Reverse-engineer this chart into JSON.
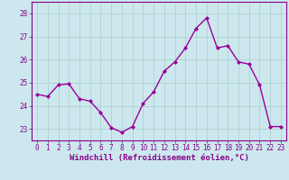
{
  "x": [
    0,
    1,
    2,
    3,
    4,
    5,
    6,
    7,
    8,
    9,
    10,
    11,
    12,
    13,
    14,
    15,
    16,
    17,
    18,
    19,
    20,
    21,
    22,
    23
  ],
  "y": [
    24.5,
    24.4,
    24.9,
    24.95,
    24.3,
    24.2,
    23.7,
    23.05,
    22.85,
    23.1,
    24.1,
    24.6,
    25.5,
    25.9,
    26.5,
    27.35,
    27.8,
    26.5,
    26.6,
    25.9,
    25.8,
    24.9,
    23.1,
    23.1
  ],
  "line_color": "#990099",
  "marker": "D",
  "marker_size": 2,
  "bg_color": "#cce8ee",
  "grid_color": "#aacccc",
  "xlabel": "Windchill (Refroidissement éolien,°C)",
  "xlim": [
    -0.5,
    23.5
  ],
  "ylim": [
    22.5,
    28.5
  ],
  "yticks": [
    23,
    24,
    25,
    26,
    27,
    28
  ],
  "xticks": [
    0,
    1,
    2,
    3,
    4,
    5,
    6,
    7,
    8,
    9,
    10,
    11,
    12,
    13,
    14,
    15,
    16,
    17,
    18,
    19,
    20,
    21,
    22,
    23
  ],
  "font_color": "#880088",
  "tick_label_size": 5.5,
  "xlabel_size": 6.5,
  "linewidth": 1.0
}
